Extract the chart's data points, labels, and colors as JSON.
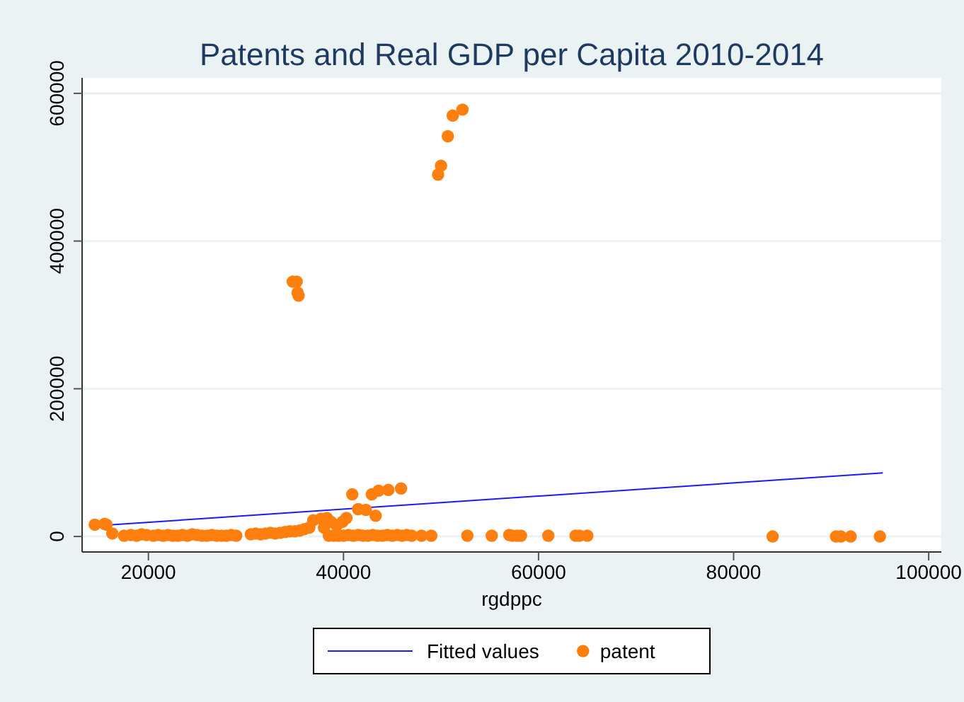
{
  "chart_data": {
    "type": "scatter",
    "title": "Patents and Real GDP per Capita 2010-2014",
    "xlabel": "rgdppc",
    "xlim": [
      13200,
      101300
    ],
    "ylim": [
      -21000,
      621000
    ],
    "xticks": [
      20000,
      40000,
      60000,
      80000,
      100000
    ],
    "yticks": [
      0,
      200000,
      400000,
      600000
    ],
    "grid": "y",
    "legend": "bottom",
    "series": [
      {
        "name": "Fitted values",
        "type": "line",
        "color": "#1a1aff",
        "marker": "none",
        "x": [
          15200,
          95300
        ],
        "values": [
          15000,
          86000
        ]
      },
      {
        "name": "patent",
        "type": "scatter",
        "color": "#ff7f0e",
        "marker": "circle",
        "x": [
          14500,
          15500,
          15700,
          16300,
          17500,
          18200,
          18800,
          19300,
          19800,
          20500,
          21000,
          21500,
          22000,
          22500,
          23000,
          23500,
          24000,
          24500,
          25000,
          25500,
          26000,
          26500,
          27000,
          27500,
          28000,
          28500,
          29000,
          30500,
          31000,
          31500,
          32000,
          32500,
          33000,
          33500,
          34000,
          34500,
          35000,
          35500,
          36000,
          36500,
          38000,
          38500,
          39000,
          39500,
          40000,
          40500,
          41000,
          41500,
          42000,
          42500,
          43000,
          43500,
          44000,
          44500,
          45000,
          45500,
          46000,
          46500,
          47000,
          48000,
          49000,
          38300,
          38700,
          39300,
          39900,
          40300,
          40900,
          41500,
          42300,
          42900,
          43300,
          43600,
          44600,
          45900,
          36900,
          37700,
          34800,
          35200,
          35300,
          35400,
          49700,
          50000,
          50700,
          51200,
          52200,
          52700,
          55200,
          57000,
          57300,
          57800,
          58200,
          61000,
          63800,
          64200,
          65000,
          84000,
          90500,
          91000,
          92000,
          95000
        ],
        "values": [
          16000,
          17000,
          16000,
          4000,
          1000,
          2000,
          1000,
          3000,
          2000,
          1000,
          2000,
          1000,
          2000,
          1000,
          1000,
          2000,
          1000,
          3000,
          2000,
          1000,
          1000,
          2000,
          1000,
          1000,
          1000,
          2000,
          1000,
          3000,
          4000,
          3000,
          4000,
          5000,
          4000,
          5000,
          6000,
          7000,
          7000,
          8000,
          10000,
          12000,
          12000,
          1000,
          1000,
          1000,
          1000,
          2000,
          1000,
          2000,
          1000,
          1000,
          2000,
          1000,
          1000,
          2000,
          1000,
          2000,
          1000,
          2000,
          1000,
          1000,
          1000,
          25000,
          20000,
          15000,
          20000,
          25000,
          57000,
          37000,
          36000,
          57000,
          28000,
          62000,
          63000,
          65000,
          22000,
          24000,
          345000,
          345000,
          330000,
          326000,
          490000,
          502000,
          542000,
          570000,
          578000,
          1000,
          1000,
          2000,
          1000,
          1000,
          1000,
          1000,
          1000,
          1000,
          1000,
          0,
          0,
          0,
          0,
          0
        ]
      }
    ]
  }
}
